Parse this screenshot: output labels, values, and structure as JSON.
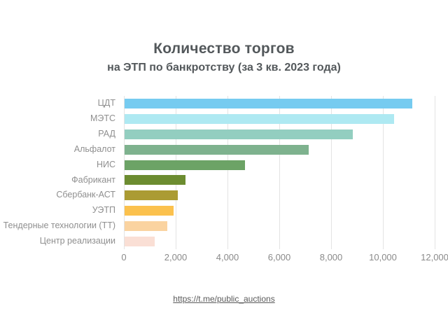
{
  "header": {
    "title": "Количество торгов",
    "subtitle": "на ЭТП по банкротству (за 3 кв. 2023 года)"
  },
  "footer": {
    "link_text": "https://t.me/public_auctions"
  },
  "colors": {
    "title_text": "#53585b",
    "category_label_text": "#8f8f8f",
    "tick_label_text": "#8a8a8a",
    "gridline": "#e3e3e3",
    "background": "#ffffff"
  },
  "chart_data": {
    "type": "bar",
    "orientation": "horizontal",
    "title": "Количество торгов",
    "subtitle": "на ЭТП по банкротству (за 3 кв. 2023 года)",
    "xlabel": "",
    "ylabel": "",
    "grid": true,
    "xlim": [
      0,
      12000
    ],
    "xticks": [
      0,
      2000,
      4000,
      6000,
      8000,
      10000,
      12000
    ],
    "xtick_labels": [
      "0",
      "2,000",
      "4,000",
      "6,000",
      "8,000",
      "10,000",
      "12,000"
    ],
    "categories": [
      "ЦДТ",
      "МЭТС",
      "РАД",
      "Альфалот",
      "НИС",
      "Фабрикант",
      "Сбербанк-АСТ",
      "УЭТП",
      "Тендерные технологии (ТТ)",
      "Центр реализации"
    ],
    "values": [
      11100,
      10400,
      8800,
      7100,
      4650,
      2350,
      2050,
      1900,
      1650,
      1150
    ],
    "bar_colors": [
      "#76CBF0",
      "#AEE9F2",
      "#93CEC0",
      "#7EB28E",
      "#6CA366",
      "#6C8C30",
      "#AB9B33",
      "#FBC14D",
      "#FAD3A0",
      "#FADFD5"
    ]
  }
}
